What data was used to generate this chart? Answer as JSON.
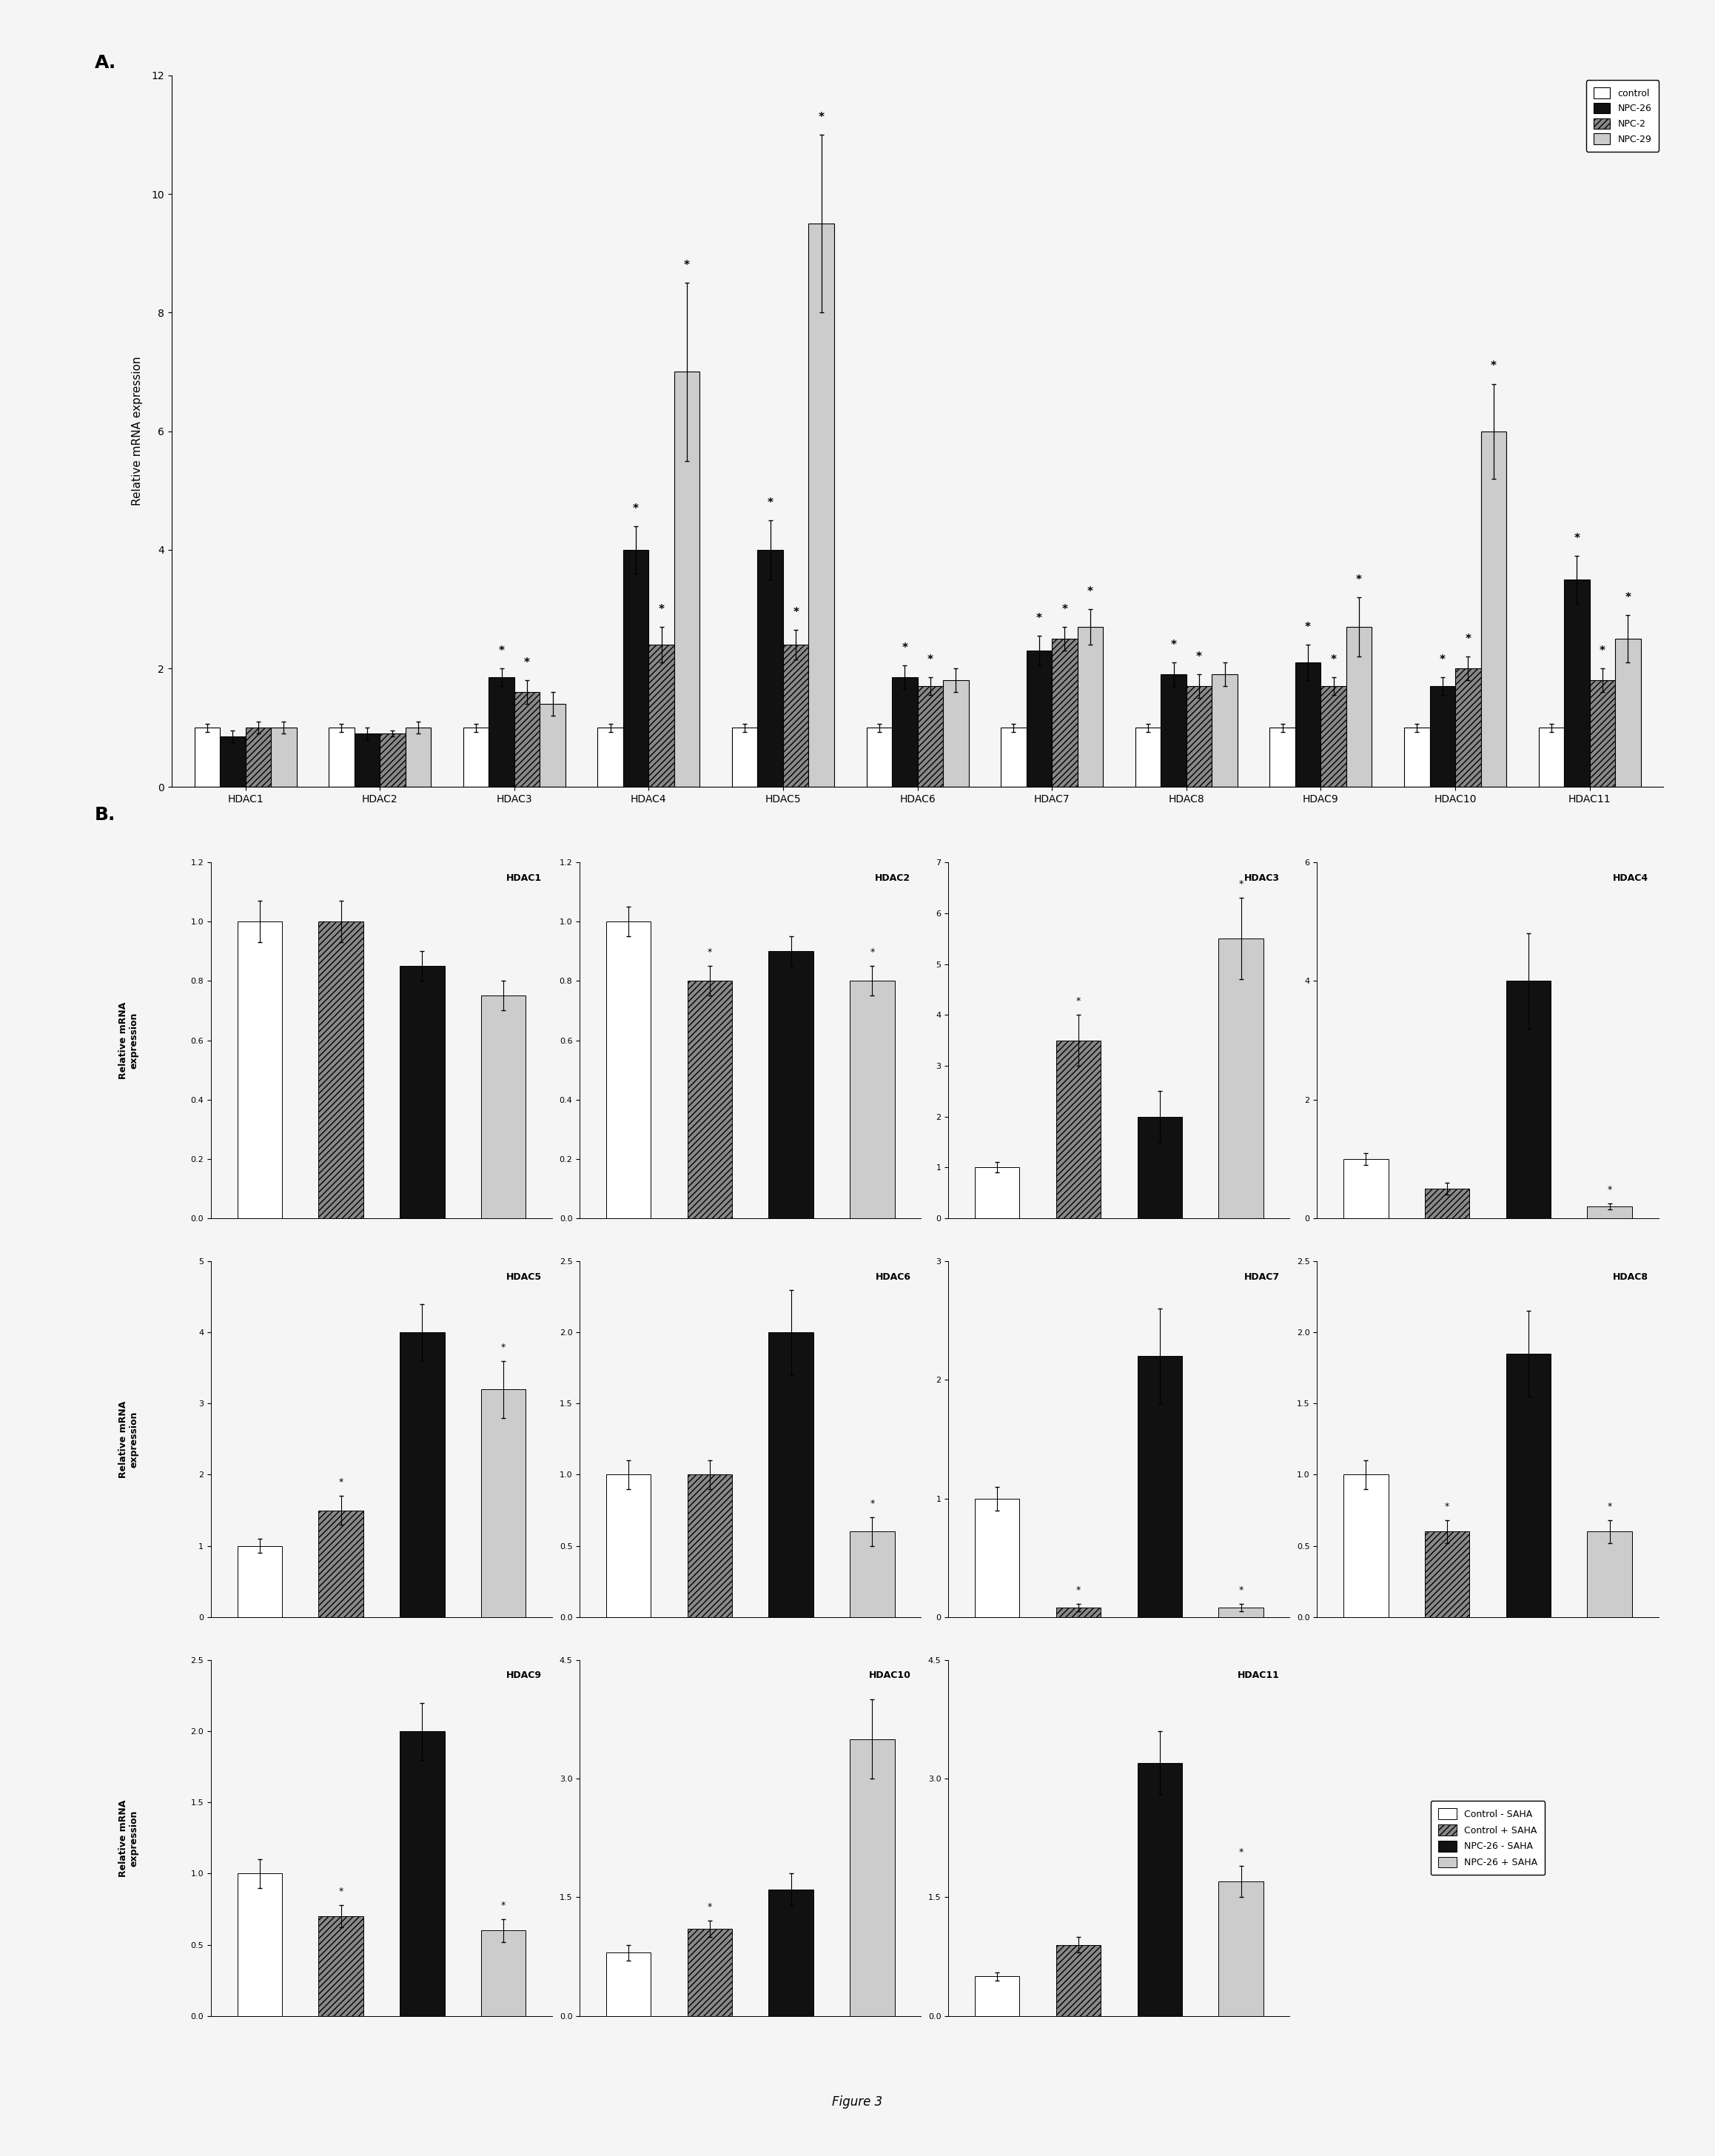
{
  "panel_A": {
    "ylabel": "Relative mRNA expression",
    "ylim": [
      0,
      12
    ],
    "yticks": [
      0,
      2,
      4,
      6,
      8,
      10,
      12
    ],
    "groups": [
      "HDAC1",
      "HDAC2",
      "HDAC3",
      "HDAC4",
      "HDAC5",
      "HDAC6",
      "HDAC7",
      "HDAC8",
      "HDAC9",
      "HDAC10",
      "HDAC11"
    ],
    "series": [
      {
        "label": "control",
        "color": "#ffffff",
        "edgecolor": "#000000",
        "hatch": "",
        "values": [
          1.0,
          1.0,
          1.0,
          1.0,
          1.0,
          1.0,
          1.0,
          1.0,
          1.0,
          1.0,
          1.0
        ],
        "errors": [
          0.07,
          0.07,
          0.07,
          0.07,
          0.07,
          0.07,
          0.07,
          0.07,
          0.07,
          0.07,
          0.07
        ],
        "sig": [
          false,
          false,
          false,
          false,
          false,
          false,
          false,
          false,
          false,
          false,
          false
        ]
      },
      {
        "label": "NPC-26",
        "color": "#111111",
        "edgecolor": "#000000",
        "hatch": "",
        "values": [
          0.85,
          0.9,
          1.85,
          4.0,
          4.0,
          1.85,
          2.3,
          1.9,
          2.1,
          1.7,
          3.5
        ],
        "errors": [
          0.1,
          0.1,
          0.15,
          0.4,
          0.5,
          0.2,
          0.25,
          0.2,
          0.3,
          0.15,
          0.4
        ],
        "sig": [
          false,
          false,
          true,
          true,
          true,
          true,
          true,
          true,
          true,
          true,
          true
        ]
      },
      {
        "label": "NPC-2",
        "color": "#888888",
        "edgecolor": "#000000",
        "hatch": "////",
        "values": [
          1.0,
          0.9,
          1.6,
          2.4,
          2.4,
          1.7,
          2.5,
          1.7,
          1.7,
          2.0,
          1.8
        ],
        "errors": [
          0.1,
          0.05,
          0.2,
          0.3,
          0.25,
          0.15,
          0.2,
          0.2,
          0.15,
          0.2,
          0.2
        ],
        "sig": [
          false,
          false,
          true,
          true,
          true,
          true,
          true,
          true,
          true,
          true,
          true
        ]
      },
      {
        "label": "NPC-29",
        "color": "#cccccc",
        "edgecolor": "#000000",
        "hatch": "",
        "values": [
          1.0,
          1.0,
          1.4,
          7.0,
          9.5,
          1.8,
          2.7,
          1.9,
          2.7,
          6.0,
          2.5
        ],
        "errors": [
          0.1,
          0.1,
          0.2,
          1.5,
          1.5,
          0.2,
          0.3,
          0.2,
          0.5,
          0.8,
          0.4
        ],
        "sig": [
          false,
          false,
          false,
          true,
          true,
          false,
          true,
          false,
          true,
          true,
          true
        ]
      }
    ]
  },
  "panel_B": {
    "subplots": [
      {
        "title": "HDAC1",
        "ylim": [
          0,
          1.2
        ],
        "yticks": [
          0,
          0.2,
          0.4,
          0.6,
          0.8,
          1.0,
          1.2
        ],
        "values": [
          1.0,
          1.0,
          0.85,
          0.75
        ],
        "errors": [
          0.07,
          0.07,
          0.05,
          0.05
        ],
        "sig": [
          false,
          false,
          false,
          false
        ]
      },
      {
        "title": "HDAC2",
        "ylim": [
          0,
          1.2
        ],
        "yticks": [
          0,
          0.2,
          0.4,
          0.6,
          0.8,
          1.0,
          1.2
        ],
        "values": [
          1.0,
          0.8,
          0.9,
          0.8
        ],
        "errors": [
          0.05,
          0.05,
          0.05,
          0.05
        ],
        "sig": [
          false,
          true,
          false,
          true
        ]
      },
      {
        "title": "HDAC3",
        "ylim": [
          0,
          7
        ],
        "yticks": [
          0,
          1,
          2,
          3,
          4,
          5,
          6,
          7
        ],
        "values": [
          1.0,
          3.5,
          2.0,
          5.5
        ],
        "errors": [
          0.1,
          0.5,
          0.5,
          0.8
        ],
        "sig": [
          false,
          true,
          false,
          true
        ]
      },
      {
        "title": "HDAC4",
        "ylim": [
          0,
          6
        ],
        "yticks": [
          0,
          2,
          4,
          6
        ],
        "values": [
          1.0,
          0.5,
          4.0,
          0.2
        ],
        "errors": [
          0.1,
          0.1,
          0.8,
          0.05
        ],
        "sig": [
          false,
          false,
          false,
          true
        ]
      },
      {
        "title": "HDAC5",
        "ylim": [
          0,
          5
        ],
        "yticks": [
          0,
          1,
          2,
          3,
          4,
          5
        ],
        "values": [
          1.0,
          1.5,
          4.0,
          3.2
        ],
        "errors": [
          0.1,
          0.2,
          0.4,
          0.4
        ],
        "sig": [
          false,
          true,
          false,
          true
        ]
      },
      {
        "title": "HDAC6",
        "ylim": [
          0,
          2.5
        ],
        "yticks": [
          0,
          0.5,
          1.0,
          1.5,
          2.0,
          2.5
        ],
        "values": [
          1.0,
          1.0,
          2.0,
          0.6
        ],
        "errors": [
          0.1,
          0.1,
          0.3,
          0.1
        ],
        "sig": [
          false,
          false,
          false,
          true
        ]
      },
      {
        "title": "HDAC7",
        "ylim": [
          0,
          3
        ],
        "yticks": [
          0,
          1,
          2,
          3
        ],
        "values": [
          1.0,
          0.08,
          2.2,
          0.08
        ],
        "errors": [
          0.1,
          0.03,
          0.4,
          0.03
        ],
        "sig": [
          false,
          true,
          false,
          true
        ]
      },
      {
        "title": "HDAC8",
        "ylim": [
          0,
          2.5
        ],
        "yticks": [
          0,
          0.5,
          1.0,
          1.5,
          2.0,
          2.5
        ],
        "values": [
          1.0,
          0.6,
          1.85,
          0.6
        ],
        "errors": [
          0.1,
          0.08,
          0.3,
          0.08
        ],
        "sig": [
          false,
          true,
          false,
          true
        ]
      },
      {
        "title": "HDAC9",
        "ylim": [
          0,
          2.5
        ],
        "yticks": [
          0,
          0.5,
          1.0,
          1.5,
          2.0,
          2.5
        ],
        "values": [
          1.0,
          0.7,
          2.0,
          0.6
        ],
        "errors": [
          0.1,
          0.08,
          0.2,
          0.08
        ],
        "sig": [
          false,
          true,
          false,
          true
        ]
      },
      {
        "title": "HDAC10",
        "ylim": [
          0,
          4.5
        ],
        "yticks": [
          0,
          1.5,
          3.0,
          4.5
        ],
        "values": [
          0.8,
          1.1,
          1.6,
          3.5
        ],
        "errors": [
          0.1,
          0.1,
          0.2,
          0.5
        ],
        "sig": [
          false,
          true,
          false,
          false
        ]
      },
      {
        "title": "HDAC11",
        "ylim": [
          0,
          4.5
        ],
        "yticks": [
          0,
          1.5,
          3.0,
          4.5
        ],
        "values": [
          0.5,
          0.9,
          3.2,
          1.7
        ],
        "errors": [
          0.05,
          0.1,
          0.4,
          0.2
        ],
        "sig": [
          false,
          false,
          false,
          true
        ]
      }
    ],
    "series_colors": [
      "#ffffff",
      "#888888",
      "#111111",
      "#cccccc"
    ],
    "series_hatches": [
      "",
      "////",
      "",
      ""
    ],
    "series_edgecolors": [
      "#000000",
      "#000000",
      "#000000",
      "#000000"
    ],
    "legend_labels": [
      "Control - SAHA",
      "Control + SAHA",
      "NPC-26 - SAHA",
      "NPC-26 + SAHA"
    ]
  },
  "figure_caption": "Figure 3",
  "background_color": "#f5f5f5"
}
